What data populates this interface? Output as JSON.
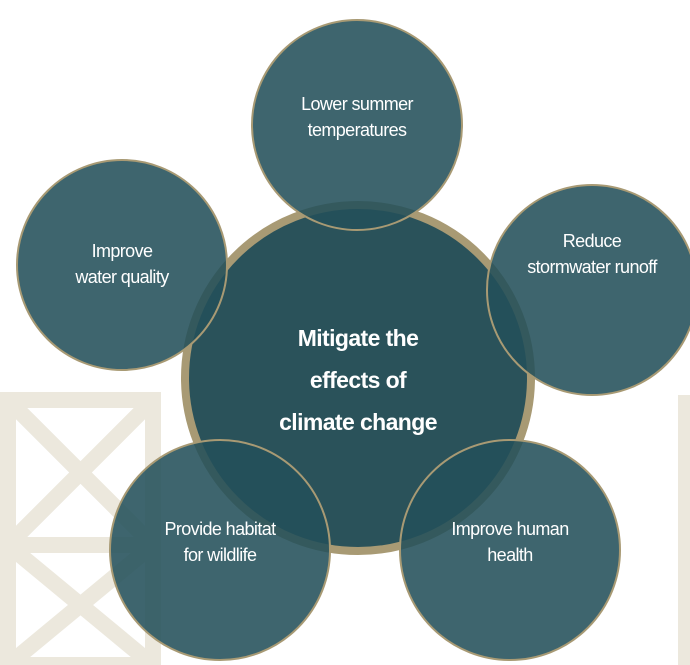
{
  "center": {
    "lines": [
      "Mitigate the",
      "effects of",
      "climate change"
    ]
  },
  "nodes": [
    {
      "lines": [
        "Lower summer",
        "temperatures"
      ]
    },
    {
      "lines": [
        "Improve",
        "water quality"
      ]
    },
    {
      "lines": [
        "Reduce",
        "stormwater runoff"
      ]
    },
    {
      "lines": [
        "Provide habitat",
        "for wildlife"
      ]
    },
    {
      "lines": [
        "Improve human",
        "health"
      ]
    }
  ]
}
